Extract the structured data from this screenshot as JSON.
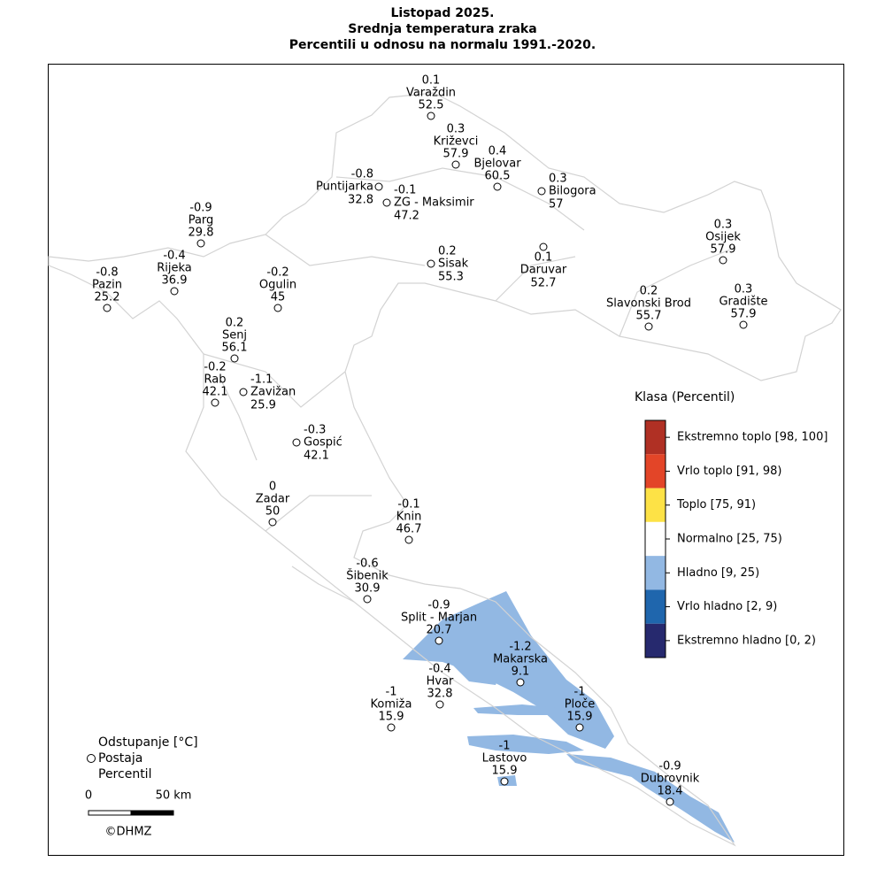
{
  "title": [
    "Listopad 2025.",
    "Srednja temperatura zraka",
    "Percentili u odnosu na normalu 1991.-2020."
  ],
  "stations": [
    {
      "name": "Varaždin",
      "deviation": 0.1,
      "percentile": 52.5
    },
    {
      "name": "Križevci",
      "deviation": 0.3,
      "percentile": 57.9
    },
    {
      "name": "Bjelovar",
      "deviation": 0.4,
      "percentile": 60.5
    },
    {
      "name": "Bilogora",
      "deviation": 0.3,
      "percentile": 57
    },
    {
      "name": "Puntijarka",
      "deviation": -0.8,
      "percentile": 32.8
    },
    {
      "name": "ZG - Maksimir",
      "deviation": -0.1,
      "percentile": 47.2
    },
    {
      "name": "Parg",
      "deviation": -0.9,
      "percentile": 29.8
    },
    {
      "name": "Rijeka",
      "deviation": -0.4,
      "percentile": 36.9
    },
    {
      "name": "Pazin",
      "deviation": -0.8,
      "percentile": 25.2
    },
    {
      "name": "Ogulin",
      "deviation": -0.2,
      "percentile": 45
    },
    {
      "name": "Sisak",
      "deviation": 0.2,
      "percentile": 55.3
    },
    {
      "name": "Daruvar",
      "deviation": 0.1,
      "percentile": 52.7
    },
    {
      "name": "Osijek",
      "deviation": 0.3,
      "percentile": 57.9
    },
    {
      "name": "Gradište",
      "deviation": 0.3,
      "percentile": 57.9
    },
    {
      "name": "Slavonski Brod",
      "deviation": 0.2,
      "percentile": 55.7
    },
    {
      "name": "Senj",
      "deviation": 0.2,
      "percentile": 56.1
    },
    {
      "name": "Rab",
      "deviation": -0.2,
      "percentile": 42.1
    },
    {
      "name": "Zavižan",
      "deviation": -1.1,
      "percentile": 25.9
    },
    {
      "name": "Gospić",
      "deviation": -0.3,
      "percentile": 42.1
    },
    {
      "name": "Zadar",
      "deviation": 0,
      "percentile": 50
    },
    {
      "name": "Knin",
      "deviation": -0.1,
      "percentile": 46.7
    },
    {
      "name": "Šibenik",
      "deviation": -0.6,
      "percentile": 30.9
    },
    {
      "name": "Split - Marjan",
      "deviation": -0.9,
      "percentile": 20.7
    },
    {
      "name": "Makarska",
      "deviation": -1.2,
      "percentile": 9.1
    },
    {
      "name": "Hvar",
      "deviation": -0.4,
      "percentile": 32.8
    },
    {
      "name": "Komiža",
      "deviation": -1,
      "percentile": 15.9
    },
    {
      "name": "Ploče",
      "deviation": -1,
      "percentile": 15.9
    },
    {
      "name": "Lastovo",
      "deviation": -1,
      "percentile": 15.9
    },
    {
      "name": "Dubrovnik",
      "deviation": -0.9,
      "percentile": 18.4
    }
  ],
  "legend": {
    "title": "Klasa (Percentil)",
    "classes": [
      {
        "label": "Ekstremno toplo [98, 100]",
        "color": "#b03024"
      },
      {
        "label": "Vrlo toplo [91, 98)",
        "color": "#e34528"
      },
      {
        "label": "Toplo [75, 91)",
        "color": "#fde246"
      },
      {
        "label": "Normalno [25, 75)",
        "color": "#ffffff"
      },
      {
        "label": "Hladno [9, 25)",
        "color": "#92b8e3"
      },
      {
        "label": "Vrlo hladno [2, 9)",
        "color": "#1f66ad"
      },
      {
        "label": "Ekstremno hladno [0, 2)",
        "color": "#26296e"
      }
    ]
  },
  "key": {
    "deviation": "Odstupanje [°C]",
    "station": "Postaja",
    "percentile": "Percentil"
  },
  "scale": {
    "start": "0",
    "end": "50 km"
  },
  "credit": "©DHMZ"
}
